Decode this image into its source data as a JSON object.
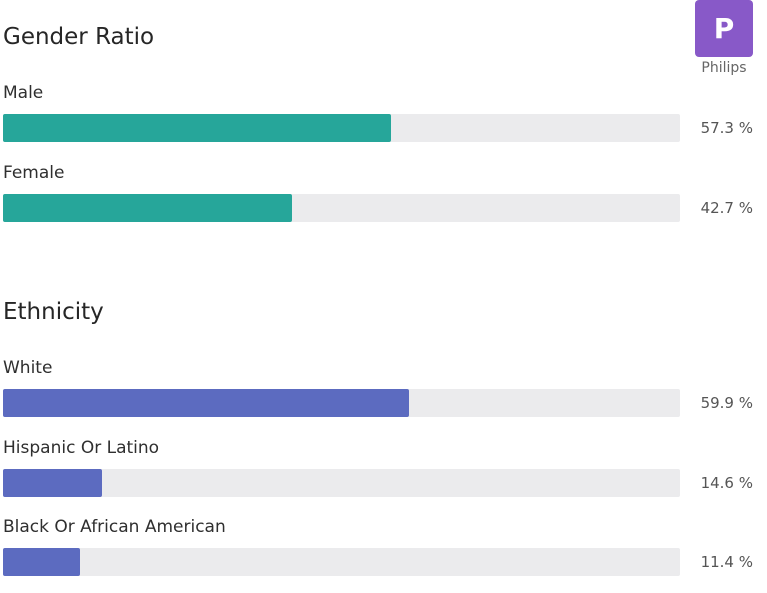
{
  "company": {
    "logo_letter": "P",
    "name": "Philips",
    "logo_color": "#8859c8"
  },
  "colors": {
    "gender": "#26a69a",
    "ethnicity": "#5c6bc0",
    "track": "#ebebed"
  },
  "chart_data": [
    {
      "type": "bar",
      "title": "Gender Ratio",
      "orientation": "horizontal",
      "categories": [
        "Male",
        "Female"
      ],
      "values": [
        57.3,
        42.7
      ],
      "value_labels": [
        "57.3 %",
        "42.7 %"
      ],
      "xlim": [
        0,
        100
      ],
      "color": "#26a69a"
    },
    {
      "type": "bar",
      "title": "Ethnicity",
      "orientation": "horizontal",
      "categories": [
        "White",
        "Hispanic Or Latino",
        "Black Or African American"
      ],
      "values": [
        59.9,
        14.6,
        11.4
      ],
      "value_labels": [
        "59.9 %",
        "14.6 %",
        "11.4 %"
      ],
      "xlim": [
        0,
        100
      ],
      "color": "#5c6bc0"
    }
  ]
}
